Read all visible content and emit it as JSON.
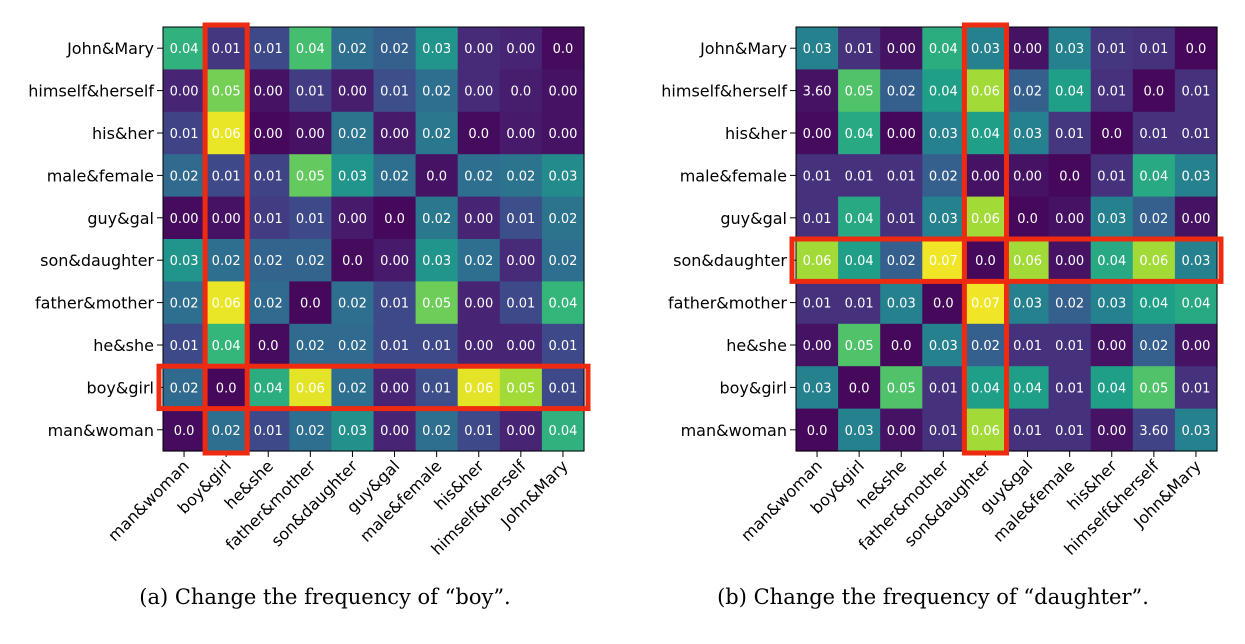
{
  "chart_data": [
    {
      "type": "heatmap",
      "caption": "(a) Change the frequency of “boy”.",
      "rows": [
        "John&Mary",
        "himself&herself",
        "his&her",
        "male&female",
        "guy&gal",
        "son&daughter",
        "father&mother",
        "he&she",
        "boy&girl",
        "man&woman"
      ],
      "columns": [
        "man&woman",
        "boy&girl",
        "he&she",
        "father&mother",
        "son&daughter",
        "guy&gal",
        "male&female",
        "his&her",
        "himself&herself",
        "John&Mary"
      ],
      "cell_labels": [
        [
          "0.04",
          "0.01",
          "0.01",
          "0.04",
          "0.02",
          "0.02",
          "0.03",
          "0.00",
          "0.00",
          "0.0"
        ],
        [
          "0.00",
          "0.05",
          "0.00",
          "0.01",
          "0.00",
          "0.01",
          "0.02",
          "0.00",
          "0.0",
          "0.00"
        ],
        [
          "0.01",
          "0.06",
          "0.00",
          "0.00",
          "0.02",
          "0.00",
          "0.02",
          "0.0",
          "0.00",
          "0.00"
        ],
        [
          "0.02",
          "0.01",
          "0.01",
          "0.05",
          "0.03",
          "0.02",
          "0.0",
          "0.02",
          "0.02",
          "0.03"
        ],
        [
          "0.00",
          "0.00",
          "0.01",
          "0.01",
          "0.00",
          "0.0",
          "0.02",
          "0.00",
          "0.01",
          "0.02"
        ],
        [
          "0.03",
          "0.02",
          "0.02",
          "0.02",
          "0.0",
          "0.00",
          "0.03",
          "0.02",
          "0.00",
          "0.02"
        ],
        [
          "0.02",
          "0.06",
          "0.02",
          "0.0",
          "0.02",
          "0.01",
          "0.05",
          "0.00",
          "0.01",
          "0.04"
        ],
        [
          "0.01",
          "0.04",
          "0.0",
          "0.02",
          "0.02",
          "0.01",
          "0.01",
          "0.00",
          "0.00",
          "0.01"
        ],
        [
          "0.02",
          "0.0",
          "0.04",
          "0.06",
          "0.02",
          "0.00",
          "0.01",
          "0.06",
          "0.05",
          "0.01"
        ],
        [
          "0.0",
          "0.02",
          "0.01",
          "0.02",
          "0.03",
          "0.00",
          "0.02",
          "0.01",
          "0.00",
          "0.04"
        ]
      ],
      "color_values": [
        [
          0.64,
          0.16,
          0.22,
          0.7,
          0.36,
          0.3,
          0.52,
          0.12,
          0.1,
          0.03
        ],
        [
          0.1,
          0.79,
          0.05,
          0.18,
          0.08,
          0.24,
          0.36,
          0.12,
          0.08,
          0.05
        ],
        [
          0.2,
          0.97,
          0.02,
          0.05,
          0.38,
          0.07,
          0.4,
          0.03,
          0.07,
          0.05
        ],
        [
          0.34,
          0.22,
          0.2,
          0.76,
          0.52,
          0.36,
          0.05,
          0.36,
          0.38,
          0.48
        ],
        [
          0.03,
          0.05,
          0.18,
          0.22,
          0.07,
          0.02,
          0.4,
          0.1,
          0.24,
          0.38
        ],
        [
          0.52,
          0.36,
          0.32,
          0.32,
          0.03,
          0.07,
          0.52,
          0.36,
          0.12,
          0.36
        ],
        [
          0.36,
          0.97,
          0.34,
          0.02,
          0.36,
          0.22,
          0.78,
          0.1,
          0.22,
          0.66
        ],
        [
          0.22,
          0.66,
          0.03,
          0.34,
          0.34,
          0.22,
          0.22,
          0.1,
          0.1,
          0.22
        ],
        [
          0.34,
          0.02,
          0.62,
          0.96,
          0.36,
          0.1,
          0.24,
          0.96,
          0.86,
          0.22
        ],
        [
          0.03,
          0.36,
          0.22,
          0.36,
          0.5,
          0.1,
          0.36,
          0.22,
          0.1,
          0.64
        ]
      ],
      "highlights": [
        {
          "kind": "column",
          "index": 1
        },
        {
          "kind": "row",
          "index": 8
        }
      ],
      "highlight_color": "#ee2b10"
    },
    {
      "type": "heatmap",
      "caption": "(b) Change the frequency of “daughter”.",
      "rows": [
        "John&Mary",
        "himself&herself",
        "his&her",
        "male&female",
        "guy&gal",
        "son&daughter",
        "father&mother",
        "he&she",
        "boy&girl",
        "man&woman"
      ],
      "columns": [
        "man&woman",
        "boy&girl",
        "he&she",
        "father&mother",
        "son&daughter",
        "guy&gal",
        "male&female",
        "his&her",
        "himself&herself",
        "John&Mary"
      ],
      "cell_labels": [
        [
          "0.03",
          "0.01",
          "0.00",
          "0.04",
          "0.03",
          "0.00",
          "0.03",
          "0.01",
          "0.01",
          "0.0"
        ],
        [
          "3.60",
          "0.05",
          "0.02",
          "0.04",
          "0.06",
          "0.02",
          "0.04",
          "0.01",
          "0.0",
          "0.01"
        ],
        [
          "0.00",
          "0.04",
          "0.00",
          "0.03",
          "0.04",
          "0.03",
          "0.01",
          "0.0",
          "0.01",
          "0.01"
        ],
        [
          "0.01",
          "0.01",
          "0.01",
          "0.02",
          "0.00",
          "0.00",
          "0.0",
          "0.01",
          "0.04",
          "0.03"
        ],
        [
          "0.01",
          "0.04",
          "0.01",
          "0.03",
          "0.06",
          "0.0",
          "0.00",
          "0.03",
          "0.02",
          "0.00"
        ],
        [
          "0.06",
          "0.04",
          "0.02",
          "0.07",
          "0.0",
          "0.06",
          "0.00",
          "0.04",
          "0.06",
          "0.03"
        ],
        [
          "0.01",
          "0.01",
          "0.03",
          "0.0",
          "0.07",
          "0.03",
          "0.02",
          "0.03",
          "0.04",
          "0.04"
        ],
        [
          "0.00",
          "0.05",
          "0.0",
          "0.03",
          "0.02",
          "0.01",
          "0.01",
          "0.00",
          "0.02",
          "0.00"
        ],
        [
          "0.03",
          "0.0",
          "0.05",
          "0.01",
          "0.04",
          "0.04",
          "0.01",
          "0.04",
          "0.05",
          "0.01"
        ],
        [
          "0.0",
          "0.03",
          "0.00",
          "0.01",
          "0.06",
          "0.01",
          "0.01",
          "0.00",
          "3.60",
          "0.03"
        ]
      ],
      "color_values": [
        [
          0.44,
          0.14,
          0.05,
          0.62,
          0.44,
          0.05,
          0.44,
          0.16,
          0.14,
          0.02
        ],
        [
          0.05,
          0.72,
          0.3,
          0.56,
          0.86,
          0.3,
          0.56,
          0.14,
          0.02,
          0.14
        ],
        [
          0.03,
          0.6,
          0.02,
          0.44,
          0.56,
          0.44,
          0.16,
          0.02,
          0.14,
          0.14
        ],
        [
          0.14,
          0.14,
          0.14,
          0.3,
          0.05,
          0.05,
          0.02,
          0.14,
          0.6,
          0.44
        ],
        [
          0.14,
          0.6,
          0.14,
          0.44,
          0.86,
          0.02,
          0.05,
          0.44,
          0.3,
          0.05
        ],
        [
          0.86,
          0.56,
          0.3,
          0.98,
          0.02,
          0.86,
          0.05,
          0.6,
          0.86,
          0.44
        ],
        [
          0.14,
          0.14,
          0.44,
          0.02,
          0.98,
          0.44,
          0.3,
          0.44,
          0.56,
          0.6
        ],
        [
          0.05,
          0.72,
          0.02,
          0.44,
          0.3,
          0.14,
          0.14,
          0.05,
          0.3,
          0.05
        ],
        [
          0.44,
          0.02,
          0.72,
          0.14,
          0.56,
          0.56,
          0.14,
          0.56,
          0.72,
          0.14
        ],
        [
          0.02,
          0.44,
          0.05,
          0.14,
          0.86,
          0.14,
          0.14,
          0.05,
          0.2,
          0.44
        ]
      ],
      "highlights": [
        {
          "kind": "column",
          "index": 4
        },
        {
          "kind": "row",
          "index": 5
        }
      ],
      "highlight_color": "#ee2b10"
    }
  ]
}
